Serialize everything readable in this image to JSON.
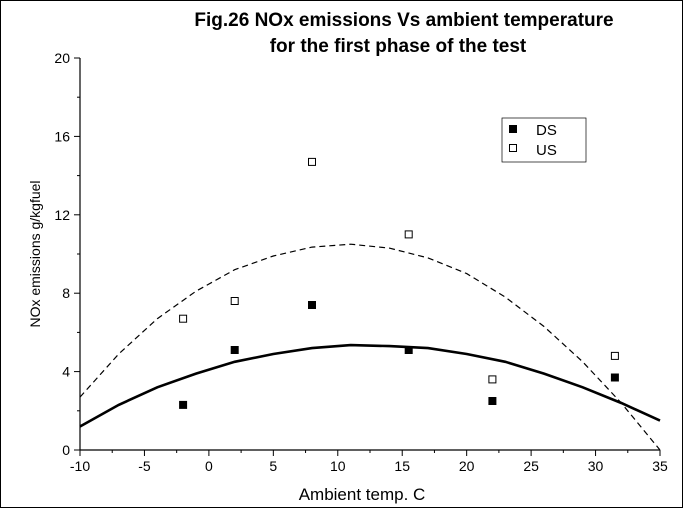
{
  "chart_data": {
    "type": "scatter",
    "title": "Fig.26  NOx emissions Vs ambient temperature",
    "subtitle": "for the first phase of the test",
    "xlabel": "Ambient temp.   C",
    "ylabel": "NOx emissions   g/kgfuel",
    "xlim": [
      -10,
      35
    ],
    "ylim": [
      0,
      20
    ],
    "x_ticks": [
      "-10",
      "-5",
      "0",
      "5",
      "10",
      "15",
      "20",
      "25",
      "30",
      "35"
    ],
    "y_ticks": [
      "0",
      "4",
      "8",
      "12",
      "16",
      "20"
    ],
    "grid": false,
    "legend_position": "top-right",
    "series": [
      {
        "name": "DS",
        "marker": "filled-square",
        "color": "#000000",
        "x": [
          -2,
          2,
          8,
          15.5,
          22,
          31.5
        ],
        "y": [
          2.3,
          5.1,
          7.4,
          5.1,
          2.5,
          3.7
        ]
      },
      {
        "name": "US",
        "marker": "open-square",
        "color": "#000000",
        "x": [
          -2,
          2,
          8,
          15.5,
          22,
          31.5
        ],
        "y": [
          6.7,
          7.6,
          14.7,
          11.0,
          3.6,
          4.8
        ]
      }
    ],
    "fits": [
      {
        "of": "DS",
        "style": "solid",
        "x": [
          -10,
          -7,
          -4,
          -1,
          2,
          5,
          8,
          11,
          14,
          17,
          20,
          23,
          26,
          29,
          32,
          35
        ],
        "y": [
          1.2,
          2.3,
          3.2,
          3.9,
          4.5,
          4.9,
          5.2,
          5.35,
          5.3,
          5.2,
          4.9,
          4.5,
          3.9,
          3.2,
          2.4,
          1.5
        ]
      },
      {
        "of": "US",
        "style": "dashed",
        "x": [
          -10,
          -7,
          -4,
          -1,
          2,
          5,
          8,
          11,
          14,
          17,
          20,
          23,
          26,
          29,
          32,
          35
        ],
        "y": [
          2.7,
          4.9,
          6.7,
          8.1,
          9.2,
          9.9,
          10.35,
          10.5,
          10.3,
          9.8,
          9.0,
          7.8,
          6.3,
          4.5,
          2.4,
          0.0
        ]
      }
    ]
  }
}
